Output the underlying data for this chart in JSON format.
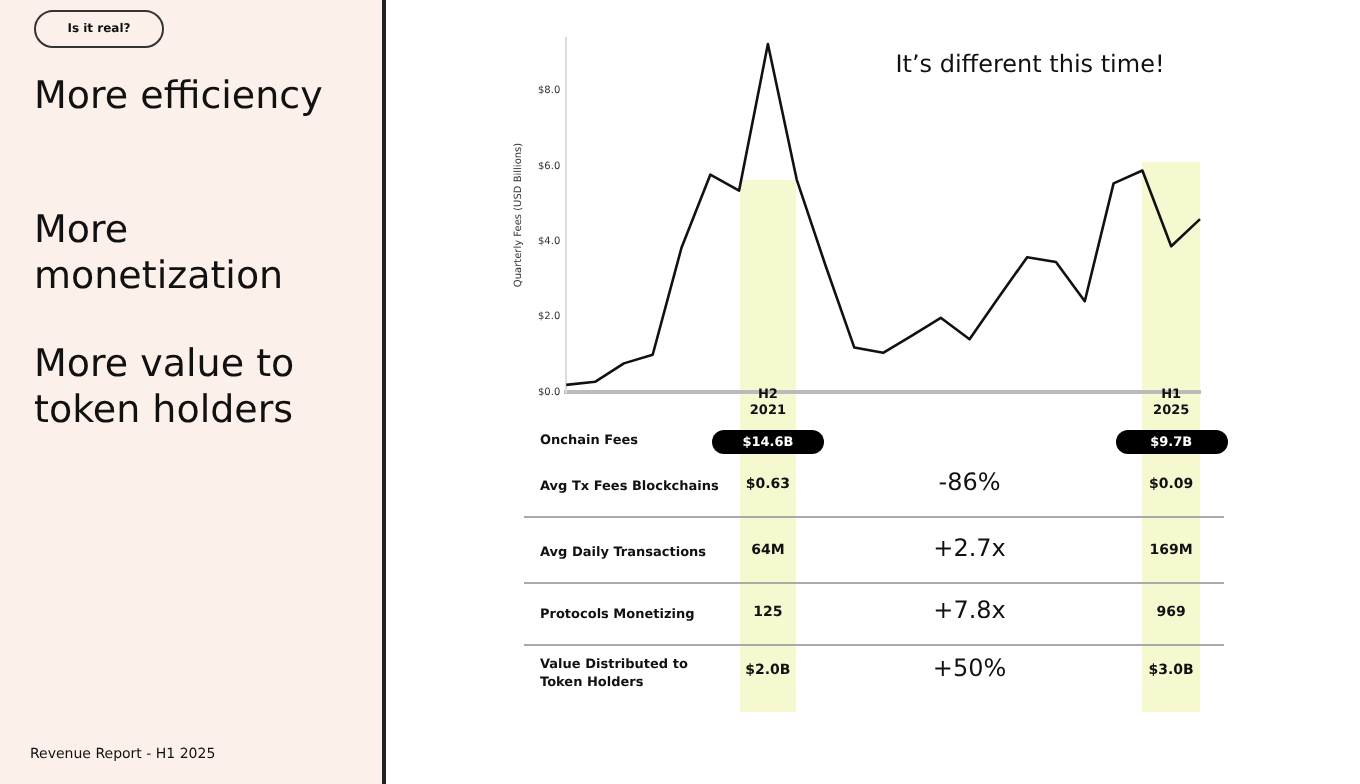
{
  "chart_data": {
    "type": "line",
    "title": "It’s different this time!",
    "ylabel": "Quarterly Fees (USD Billions)",
    "categories": [
      null,
      null,
      null,
      null,
      null,
      null,
      null,
      null,
      null,
      null,
      null,
      null,
      null,
      null,
      null,
      null,
      null,
      null,
      null,
      null,
      null,
      null,
      null
    ],
    "series": [
      {
        "color": "#111111",
        "values": [
          0.19,
          0.27,
          0.76,
          0.99,
          3.83,
          5.77,
          5.35,
          9.24,
          5.64,
          3.36,
          1.18,
          1.04,
          1.5,
          1.97,
          1.4,
          2.5,
          3.58,
          3.45,
          2.41,
          5.54,
          5.88,
          3.87,
          4.59
        ]
      }
    ],
    "ylim": [
      0,
      9.4
    ],
    "yticks": [
      {
        "value": 0,
        "label": "$0.0"
      },
      {
        "value": 2,
        "label": "$2.0"
      },
      {
        "value": 4,
        "label": "$4.0"
      },
      {
        "value": 6,
        "label": "$6.0"
      },
      {
        "value": 8,
        "label": "$8.0"
      }
    ],
    "tick_labels": "y",
    "grid": false,
    "legend": false,
    "marker": "none",
    "annotations": [
      "Is it real?",
      "More efficiency",
      "More monetization",
      "More value to token holders",
      "Onchain Fees",
      "$14.6B",
      "$9.7B",
      "Avg Tx Fees Blockchains",
      "$0.63",
      "-86%",
      "$0.09",
      "Avg Daily Transactions",
      "64M",
      "+2.7x",
      "169M",
      "Protocols Monetizing",
      "125",
      "+7.8x",
      "969",
      "Value Distributed to Token Holders",
      "$2.0B",
      "+50%",
      "$3.0B",
      "Revenue Report - H1 2025",
      "H2 2021",
      "H1 2025"
    ]
  }
}
